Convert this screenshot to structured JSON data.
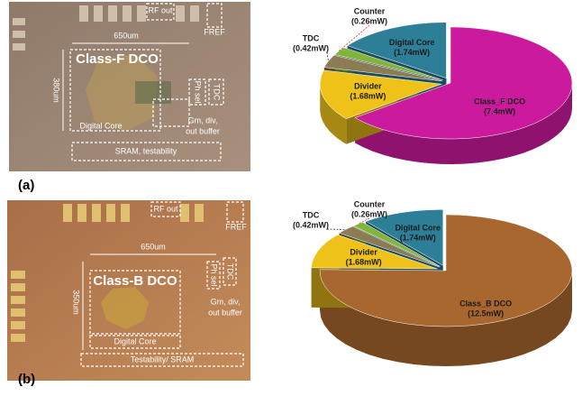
{
  "chart_data": [
    {
      "type": "pie",
      "categories": [
        "Class_F DCO",
        "Divider",
        "TDC",
        "Counter",
        "Digital Core"
      ],
      "values": [
        7.4,
        1.68,
        0.42,
        0.26,
        1.74
      ],
      "value_labels": [
        "(7.4mW)",
        "(1.68mW)",
        "(0.42mW)",
        "(0.26mW)",
        "(1.74mW)"
      ],
      "colors": [
        "#cc1a9e",
        "#efc21a",
        "#8c7c55",
        "#82b43a",
        "#2d7f98"
      ]
    },
    {
      "type": "pie",
      "categories": [
        "Class_B DCO",
        "Divider",
        "TDC",
        "Counter",
        "Digital Core"
      ],
      "values": [
        12.5,
        1.68,
        0.42,
        0.26,
        1.74
      ],
      "value_labels": [
        "(12.5mW)",
        "(1.68mW)",
        "(0.42mW)",
        "(0.26mW)",
        "(1.74mW)"
      ],
      "colors": [
        "#a8672e",
        "#efc21a",
        "#8c7c55",
        "#82b43a",
        "#2d7f98"
      ]
    }
  ],
  "panel_labels": [
    "(a)",
    "(b)"
  ],
  "die_photos": [
    {
      "rf_out": "RF out",
      "fref": "FREF",
      "width": "650um",
      "height": "380um",
      "dco": "Class-F DCO",
      "tdc": "TDC",
      "ph_sel": "Ph sel",
      "digital_core": "Digital Core",
      "buffer": [
        "Gm, div,",
        "out buffer"
      ],
      "bottom": "SRAM, testability"
    },
    {
      "rf_out": "RF out",
      "fref": "FREF",
      "width": "650um",
      "height": "350um",
      "dco": "Class-B DCO",
      "tdc": "TDC",
      "ph_sel": "Ph sel",
      "digital_core": "Digital Core",
      "buffer": [
        "Gm, div,",
        "out buffer"
      ],
      "bottom": "Testability/ SRAM"
    }
  ]
}
